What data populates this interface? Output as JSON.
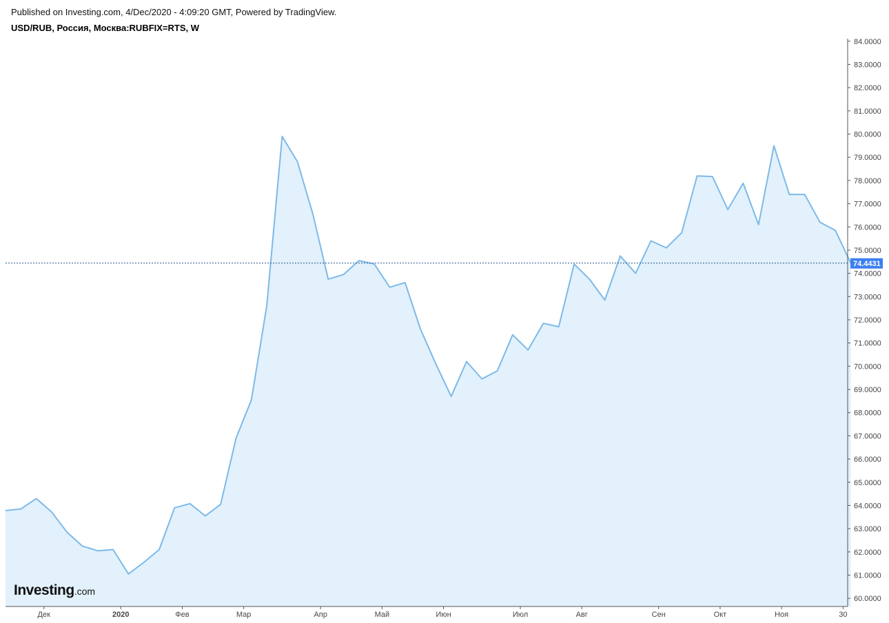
{
  "header": {
    "published": "Published on Investing.com, 4/Dec/2020 - 4:09:20 GMT, Powered by TradingView.",
    "symbol": "USD/RUB, Россия, Москва:RUBFIX=RTS, W"
  },
  "logo": {
    "main": "Investing",
    "suffix": ".com"
  },
  "colors": {
    "line": "#7db9e8",
    "fill": "#e2f1fb",
    "axis": "#555555",
    "price_line": "#1f4e8c",
    "price_badge": "#3d7ff0"
  },
  "chart_data": {
    "type": "area",
    "title": "USD/RUB, Россия, Москва:RUBFIX=RTS, W",
    "xlabel": "",
    "ylabel": "",
    "ylim": [
      59.65,
      84.35
    ],
    "grid": false,
    "y_ticks": [
      "84.0000",
      "83.0000",
      "82.0000",
      "81.0000",
      "80.0000",
      "79.0000",
      "78.0000",
      "77.0000",
      "76.0000",
      "75.0000",
      "74.0000",
      "73.0000",
      "72.0000",
      "71.0000",
      "70.0000",
      "69.0000",
      "68.0000",
      "67.0000",
      "66.0000",
      "65.0000",
      "64.0000",
      "63.0000",
      "62.0000",
      "61.0000",
      "60.0000"
    ],
    "x_ticks": [
      {
        "label": "Дек",
        "index": 2.5,
        "bold": false
      },
      {
        "label": "2020",
        "index": 7.5,
        "bold": true
      },
      {
        "label": "Фев",
        "index": 11.5,
        "bold": false
      },
      {
        "label": "Мар",
        "index": 15.5,
        "bold": false
      },
      {
        "label": "Апр",
        "index": 20.5,
        "bold": false
      },
      {
        "label": "Май",
        "index": 24.5,
        "bold": false
      },
      {
        "label": "Июн",
        "index": 28.5,
        "bold": false
      },
      {
        "label": "Июл",
        "index": 33.5,
        "bold": false
      },
      {
        "label": "Авг",
        "index": 37.5,
        "bold": false
      },
      {
        "label": "Сен",
        "index": 42.5,
        "bold": false
      },
      {
        "label": "Окт",
        "index": 46.5,
        "bold": false
      },
      {
        "label": "Ноя",
        "index": 50.5,
        "bold": false
      },
      {
        "label": "30",
        "index": 54.5,
        "bold": false
      }
    ],
    "current_value": 74.4431,
    "current_label": "74.4431",
    "series": [
      {
        "values": [
          63.78,
          63.85,
          64.3,
          63.72,
          62.85,
          62.25,
          62.05,
          62.1,
          61.05,
          61.55,
          62.1,
          63.9,
          64.08,
          63.55,
          64.05,
          66.9,
          68.55,
          72.6,
          79.9,
          78.8,
          76.55,
          73.75,
          73.95,
          74.55,
          74.4,
          73.4,
          73.6,
          71.6,
          70.1,
          68.7,
          70.2,
          69.45,
          69.8,
          71.35,
          70.7,
          71.85,
          71.7,
          74.4,
          73.75,
          72.85,
          74.75,
          74.0,
          75.4,
          75.1,
          75.75,
          78.2,
          78.17,
          76.75,
          77.88,
          76.1,
          79.5,
          77.4,
          77.4,
          76.2,
          75.85,
          74.4431
        ]
      }
    ]
  }
}
